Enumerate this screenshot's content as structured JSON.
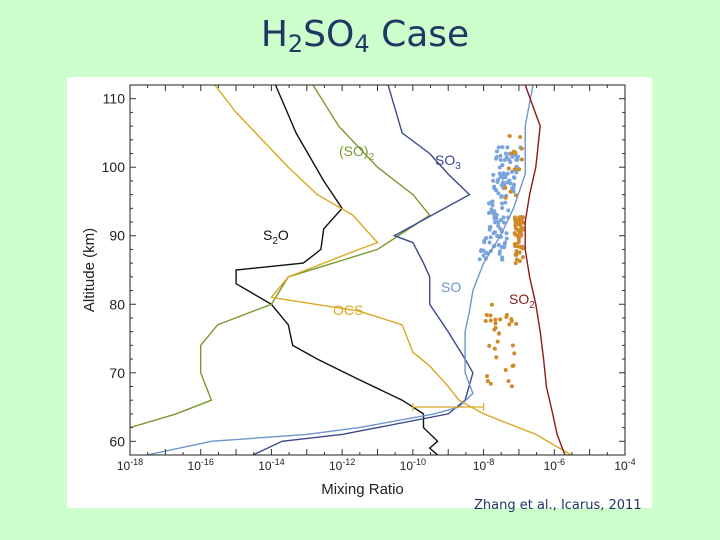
{
  "slide": {
    "title_main": "H",
    "title_sub1": "2",
    "title_mid": "SO",
    "title_sub2": "4",
    "title_end": " Case",
    "citation": "Zhang et al., Icarus, 2011"
  },
  "chart_data": {
    "type": "line",
    "xlabel": "Mixing Ratio",
    "ylabel": "Altitude (km)",
    "xscale": "log",
    "xlim": [
      1e-18,
      0.0001
    ],
    "ylim": [
      58,
      112
    ],
    "x_ticks": [
      {
        "value": 1e-18,
        "base": "10",
        "exp": "-18"
      },
      {
        "value": 1e-16,
        "base": "10",
        "exp": "-16"
      },
      {
        "value": 1e-14,
        "base": "10",
        "exp": "-14"
      },
      {
        "value": 1e-12,
        "base": "10",
        "exp": "-12"
      },
      {
        "value": 1e-10,
        "base": "10",
        "exp": "-10"
      },
      {
        "value": 1e-08,
        "base": "10",
        "exp": "-8"
      },
      {
        "value": 1e-06,
        "base": "10",
        "exp": "-6"
      },
      {
        "value": 0.0001,
        "base": "10",
        "exp": "-4"
      }
    ],
    "y_ticks": [
      "60",
      "70",
      "80",
      "90",
      "100",
      "110"
    ],
    "colors": {
      "S2O": "#111111",
      "SO2dimer": "#7a9a2e",
      "SO3": "#3b4a8a",
      "OCS": "#d9a820",
      "SO": "#6e96cc",
      "SO2": "#8b1a1a",
      "obs_SO": "#7aa4dc",
      "obs_SO2": "#d08a2a"
    },
    "series": [
      {
        "id": "S2O",
        "label_main": "S",
        "label_sub": "2",
        "label_end": "O",
        "points": [
          [
            1.3e-14,
            112
          ],
          [
            5e-14,
            105
          ],
          [
            3e-13,
            98
          ],
          [
            1e-12,
            94
          ],
          [
            3e-13,
            91
          ],
          [
            2.5e-13,
            88
          ],
          [
            8e-14,
            86
          ],
          [
            1e-15,
            85
          ],
          [
            1e-15,
            83
          ],
          [
            1e-14,
            80
          ],
          [
            3e-14,
            77
          ],
          [
            4e-14,
            74
          ],
          [
            2e-13,
            72
          ],
          [
            3e-12,
            69
          ],
          [
            5e-11,
            66
          ],
          [
            2e-10,
            64
          ],
          [
            2e-10,
            62
          ],
          [
            5e-10,
            60
          ],
          [
            3e-10,
            59
          ],
          [
            5e-10,
            58
          ]
        ]
      },
      {
        "id": "SO2dimer",
        "label_main": "(SO)",
        "label_sub": "2",
        "label_end": "",
        "points": [
          [
            1.5e-13,
            112
          ],
          [
            8e-13,
            106
          ],
          [
            1e-11,
            100
          ],
          [
            1e-10,
            96
          ],
          [
            3e-10,
            93
          ],
          [
            1e-11,
            88
          ],
          [
            3e-14,
            84
          ],
          [
            1e-14,
            80
          ],
          [
            3e-16,
            77
          ],
          [
            1e-16,
            74
          ],
          [
            1e-16,
            70
          ],
          [
            2e-16,
            66
          ],
          [
            2e-17,
            64
          ],
          [
            1e-18,
            62
          ]
        ]
      },
      {
        "id": "SO3",
        "label_main": "SO",
        "label_sub": "3",
        "label_end": "",
        "points": [
          [
            2e-11,
            112
          ],
          [
            5e-11,
            105
          ],
          [
            3e-10,
            102
          ],
          [
            1e-09,
            99
          ],
          [
            4e-09,
            96
          ],
          [
            3e-11,
            90
          ],
          [
            1e-10,
            89
          ],
          [
            2e-10,
            86
          ],
          [
            3e-10,
            84
          ],
          [
            3e-10,
            80
          ],
          [
            1e-09,
            76
          ],
          [
            3e-09,
            72
          ],
          [
            5e-09,
            70
          ],
          [
            3e-09,
            66
          ],
          [
            1e-09,
            64
          ],
          [
            1e-11,
            62
          ],
          [
            1e-12,
            61
          ],
          [
            2e-14,
            60
          ],
          [
            3e-15,
            58
          ]
        ]
      },
      {
        "id": "OCS",
        "label_main": "OCS",
        "label_sub": "",
        "label_end": "",
        "points": [
          [
            2.5e-16,
            112
          ],
          [
            1e-15,
            108
          ],
          [
            3e-14,
            100
          ],
          [
            2e-13,
            96
          ],
          [
            2e-12,
            93
          ],
          [
            1e-11,
            89
          ],
          [
            3e-12,
            88
          ],
          [
            3e-13,
            86
          ],
          [
            3e-14,
            84
          ],
          [
            1e-14,
            81
          ],
          [
            3e-12,
            79
          ],
          [
            5e-11,
            77
          ],
          [
            1e-10,
            73
          ],
          [
            3e-10,
            71
          ],
          [
            1e-09,
            68
          ],
          [
            2e-09,
            66
          ],
          [
            1e-08,
            64
          ],
          [
            3e-07,
            61
          ],
          [
            3e-06,
            58
          ]
        ]
      },
      {
        "id": "SO",
        "label_main": "SO",
        "label_sub": "",
        "label_end": "",
        "points": [
          [
            2.5e-07,
            112
          ],
          [
            1.5e-07,
            106
          ],
          [
            1.5e-07,
            99
          ],
          [
            7e-08,
            94
          ],
          [
            3e-08,
            90
          ],
          [
            1e-08,
            86
          ],
          [
            5e-09,
            82
          ],
          [
            4e-09,
            79
          ],
          [
            3e-09,
            76
          ],
          [
            3e-09,
            72
          ],
          [
            3e-09,
            70
          ],
          [
            5e-09,
            67
          ],
          [
            2e-09,
            65
          ],
          [
            4e-10,
            64
          ],
          [
            3e-12,
            62
          ],
          [
            1e-13,
            61
          ],
          [
            2e-16,
            60
          ],
          [
            3e-18,
            58
          ]
        ]
      },
      {
        "id": "SO2",
        "label_main": "SO",
        "label_sub": "2",
        "label_end": "",
        "points": [
          [
            1.5e-07,
            112
          ],
          [
            4e-07,
            106
          ],
          [
            3e-07,
            100
          ],
          [
            2e-07,
            96
          ],
          [
            1.5e-07,
            92
          ],
          [
            1.5e-07,
            88
          ],
          [
            2e-07,
            84
          ],
          [
            3e-07,
            80
          ],
          [
            4e-07,
            76
          ],
          [
            5e-07,
            72
          ],
          [
            6e-07,
            68
          ],
          [
            9e-07,
            64
          ],
          [
            1.2e-06,
            61
          ],
          [
            2e-06,
            58
          ]
        ]
      }
    ],
    "errorbar": {
      "center": 3.5e-10,
      "low": 1e-10,
      "high": 1e-08,
      "y": 65,
      "color": "#d9a820"
    }
  }
}
